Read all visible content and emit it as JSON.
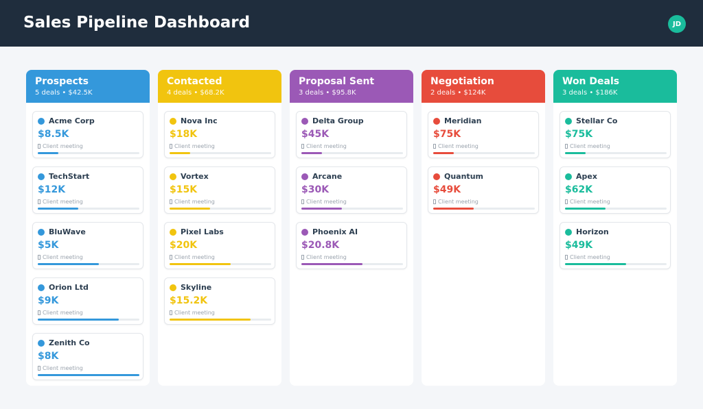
{
  "header": {
    "title": "Sales Pipeline Dashboard",
    "avatar": "JD"
  },
  "columns": [
    {
      "name": "Prospects",
      "summary": "5 deals • $42.5K",
      "color": "#3498db",
      "deals": [
        {
          "name": "Acme Corp",
          "value": "$8.5K",
          "note": "Client meeting",
          "progress": 0.2
        },
        {
          "name": "TechStart",
          "value": "$12K",
          "note": "Client meeting",
          "progress": 0.4
        },
        {
          "name": "BluWave",
          "value": "$5K",
          "note": "Client meeting",
          "progress": 0.6
        },
        {
          "name": "Orion Ltd",
          "value": "$9K",
          "note": "Client meeting",
          "progress": 0.8
        },
        {
          "name": "Zenith Co",
          "value": "$8K",
          "note": "Client meeting",
          "progress": 1.0
        }
      ]
    },
    {
      "name": "Contacted",
      "summary": "4 deals • $68.2K",
      "color": "#f1c40f",
      "deals": [
        {
          "name": "Nova Inc",
          "value": "$18K",
          "note": "Client meeting",
          "progress": 0.2
        },
        {
          "name": "Vortex",
          "value": "$15K",
          "note": "Client meeting",
          "progress": 0.4
        },
        {
          "name": "Pixel Labs",
          "value": "$20K",
          "note": "Client meeting",
          "progress": 0.6
        },
        {
          "name": "Skyline",
          "value": "$15.2K",
          "note": "Client meeting",
          "progress": 0.8
        }
      ]
    },
    {
      "name": "Proposal Sent",
      "summary": "3 deals • $95.8K",
      "color": "#9b59b6",
      "deals": [
        {
          "name": "Delta Group",
          "value": "$45K",
          "note": "Client meeting",
          "progress": 0.2
        },
        {
          "name": "Arcane",
          "value": "$30K",
          "note": "Client meeting",
          "progress": 0.4
        },
        {
          "name": "Phoenix AI",
          "value": "$20.8K",
          "note": "Client meeting",
          "progress": 0.6
        }
      ]
    },
    {
      "name": "Negotiation",
      "summary": "2 deals • $124K",
      "color": "#e74c3c",
      "deals": [
        {
          "name": "Meridian",
          "value": "$75K",
          "note": "Client meeting",
          "progress": 0.2
        },
        {
          "name": "Quantum",
          "value": "$49K",
          "note": "Client meeting",
          "progress": 0.4
        }
      ]
    },
    {
      "name": "Won Deals",
      "summary": "3 deals • $186K",
      "color": "#1abc9c",
      "deals": [
        {
          "name": "Stellar Co",
          "value": "$75K",
          "note": "Client meeting",
          "progress": 0.2
        },
        {
          "name": "Apex",
          "value": "$62K",
          "note": "Client meeting",
          "progress": 0.4
        },
        {
          "name": "Horizon",
          "value": "$49K",
          "note": "Client meeting",
          "progress": 0.6
        }
      ]
    }
  ]
}
